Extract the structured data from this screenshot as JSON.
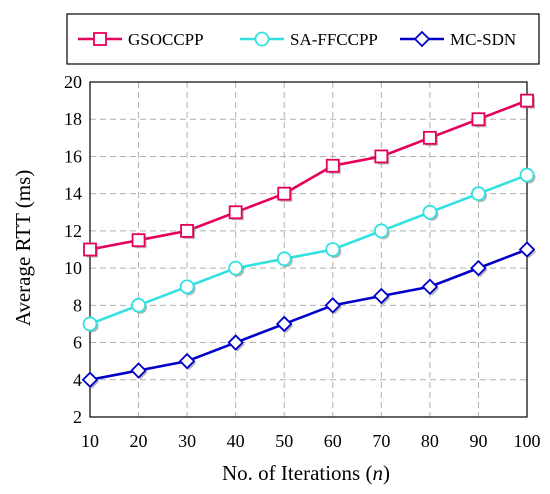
{
  "chart_data": {
    "type": "line",
    "title": "",
    "xlabel_main": "No. of Iterations (",
    "xlabel_var": "n",
    "xlabel_end": ")",
    "ylabel": "Average RTT (ms)",
    "x": [
      10,
      20,
      30,
      40,
      50,
      60,
      70,
      80,
      90,
      100
    ],
    "xticks": [
      "10",
      "20",
      "30",
      "40",
      "50",
      "60",
      "70",
      "80",
      "90",
      "100"
    ],
    "yticks": [
      "2",
      "4",
      "6",
      "8",
      "10",
      "12",
      "14",
      "16",
      "18",
      "20"
    ],
    "xlim": [
      10,
      100
    ],
    "ylim": [
      2,
      20
    ],
    "grid": true,
    "legend_position": "top",
    "series": [
      {
        "name": "GSOCCPP",
        "color": "#e6005c",
        "marker": "square",
        "values": [
          11.0,
          11.5,
          12.0,
          13.0,
          14.0,
          15.5,
          16.0,
          17.0,
          18.0,
          19.0
        ]
      },
      {
        "name": "SA-FFCCPP",
        "color": "#33e0e0",
        "marker": "circle",
        "values": [
          7.0,
          8.0,
          9.0,
          10.0,
          10.5,
          11.0,
          12.0,
          13.0,
          14.0,
          15.0
        ]
      },
      {
        "name": "MC-SDN",
        "color": "#0000c8",
        "marker": "diamond",
        "values": [
          4.0,
          4.5,
          5.0,
          6.0,
          7.0,
          8.0,
          8.5,
          9.0,
          10.0,
          11.0
        ]
      }
    ]
  }
}
